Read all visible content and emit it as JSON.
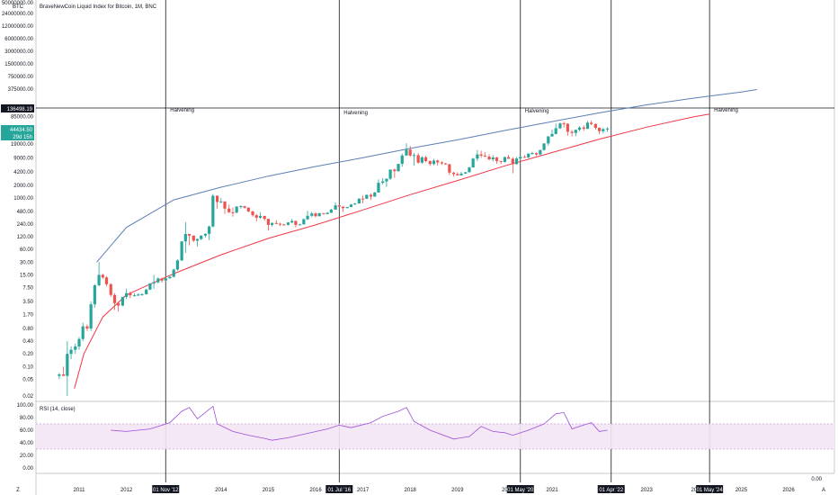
{
  "chart_data": {
    "type": "candlestick",
    "title": "BraveNewCoin Liquid Index for Bitcoin, 1M, BNC",
    "scale": "log",
    "price_axis_unit": "BTC",
    "price_ticks": [
      "50000000.00",
      "24000000.00",
      "12000000.00",
      "6000000.00",
      "3000000.00",
      "1500000.00",
      "750000.00",
      "375000.00",
      "85000.00",
      "19000.00",
      "9000.00",
      "4200.00",
      "2000.00",
      "1000.00",
      "480.00",
      "240.00",
      "120.00",
      "60.00",
      "30.00",
      "15.00",
      "7.50",
      "3.50",
      "1.70",
      "0.80",
      "0.40",
      "0.20",
      "0.10",
      "0.05",
      "0.02"
    ],
    "price_tick_values": [
      50000000,
      24000000,
      12000000,
      6000000,
      3000000,
      1500000,
      750000,
      375000,
      85000,
      19000,
      9000,
      4200,
      2000,
      1000,
      480,
      240,
      120,
      60,
      30,
      15,
      7.5,
      3.5,
      1.7,
      0.8,
      0.4,
      0.2,
      0.1,
      0.05,
      0.02
    ],
    "crosshair_price_label": "136498.19",
    "crosshair_price": 136498.19,
    "last_price_label": "44434.50",
    "last_price_countdown": "29d 15h",
    "x_ticks": [
      "2011",
      "2012",
      "2014",
      "2015",
      "2016",
      "2017",
      "2018",
      "2019",
      "20",
      "2021",
      "2023",
      "20",
      "2025",
      "2026"
    ],
    "x_tick_years": [
      2011,
      2012,
      2014,
      2015,
      2016,
      2017,
      2018,
      2019,
      2020,
      2021,
      2023,
      2024,
      2025,
      2026
    ],
    "halvings": [
      {
        "label": "Halvening",
        "date": "01 Nov '12",
        "t": 2012.83
      },
      {
        "label": "Halvening",
        "date": "01 Jul '16",
        "t": 2016.5
      },
      {
        "label": "Halvening",
        "date": "01 May '20",
        "t": 2020.33
      },
      {
        "label": "",
        "date": "01 Apr '22",
        "t": 2022.25
      },
      {
        "label": "Halvening",
        "date": "01 May '24",
        "t": 2024.33
      }
    ],
    "upper_curve": {
      "color": "#5b7fb5",
      "points": [
        [
          2011.37,
          30
        ],
        [
          2012,
          200
        ],
        [
          2013,
          900
        ],
        [
          2014,
          1800
        ],
        [
          2015,
          3300
        ],
        [
          2016,
          5600
        ],
        [
          2017,
          9000
        ],
        [
          2018,
          15000
        ],
        [
          2019,
          24000
        ],
        [
          2020,
          40000
        ],
        [
          2021,
          65000
        ],
        [
          2022,
          105000
        ],
        [
          2023,
          165000
        ],
        [
          2024,
          250000
        ],
        [
          2025,
          360000
        ],
        [
          2025.33,
          420000
        ]
      ]
    },
    "lower_curve": {
      "color": "#f23645",
      "points": [
        [
          2010.9,
          0.03
        ],
        [
          2011.1,
          0.2
        ],
        [
          2011.5,
          1.5
        ],
        [
          2012,
          5
        ],
        [
          2012.5,
          9
        ],
        [
          2013,
          16
        ],
        [
          2014,
          45
        ],
        [
          2015,
          110
        ],
        [
          2016,
          230
        ],
        [
          2017,
          520
        ],
        [
          2018,
          1200
        ],
        [
          2019,
          2600
        ],
        [
          2020,
          5800
        ],
        [
          2021,
          12000
        ],
        [
          2022,
          25000
        ],
        [
          2023,
          48000
        ],
        [
          2024,
          85000
        ],
        [
          2024.33,
          98000
        ]
      ]
    },
    "candles": [
      [
        2010.58,
        0.06,
        0.07,
        0.05,
        0.065
      ],
      [
        2010.67,
        0.065,
        0.1,
        0.06,
        0.06
      ],
      [
        2010.75,
        0.06,
        0.4,
        0.02,
        0.2
      ],
      [
        2010.83,
        0.2,
        0.3,
        0.15,
        0.25
      ],
      [
        2010.92,
        0.25,
        0.35,
        0.2,
        0.3
      ],
      [
        2011.0,
        0.3,
        0.5,
        0.25,
        0.45
      ],
      [
        2011.08,
        0.45,
        1.1,
        0.4,
        0.9
      ],
      [
        2011.17,
        0.9,
        1.0,
        0.7,
        0.8
      ],
      [
        2011.25,
        0.8,
        3.5,
        0.7,
        3.0
      ],
      [
        2011.33,
        3.0,
        9.0,
        2.5,
        8.5
      ],
      [
        2011.42,
        8.5,
        30,
        8,
        15
      ],
      [
        2011.5,
        15,
        16,
        12,
        13
      ],
      [
        2011.58,
        13,
        14,
        8,
        9
      ],
      [
        2011.67,
        9,
        9.5,
        4.5,
        5
      ],
      [
        2011.75,
        5,
        5.5,
        2.2,
        3.2
      ],
      [
        2011.83,
        3.2,
        3.5,
        2.0,
        2.8
      ],
      [
        2011.92,
        2.8,
        4.5,
        2.7,
        4.5
      ],
      [
        2012.0,
        4.5,
        7,
        4.0,
        5.5
      ],
      [
        2012.08,
        5.5,
        6,
        4.2,
        4.9
      ],
      [
        2012.17,
        4.9,
        5.5,
        4.6,
        4.9
      ],
      [
        2012.25,
        4.9,
        5.5,
        4.7,
        5.1
      ],
      [
        2012.33,
        5.1,
        5.5,
        4.8,
        5.2
      ],
      [
        2012.42,
        5.2,
        7,
        5.1,
        6.7
      ],
      [
        2012.5,
        6.7,
        9.5,
        6.5,
        9.4
      ],
      [
        2012.58,
        9.4,
        15,
        7,
        10
      ],
      [
        2012.67,
        10,
        13,
        9.5,
        12.3
      ],
      [
        2012.75,
        12.3,
        13,
        9.8,
        11
      ],
      [
        2012.83,
        11,
        13,
        10,
        12.5
      ],
      [
        2012.92,
        12.5,
        14,
        12,
        13.5
      ],
      [
        2013.0,
        13.5,
        21,
        13,
        20
      ],
      [
        2013.08,
        20,
        35,
        19,
        33
      ],
      [
        2013.17,
        33,
        95,
        32,
        93
      ],
      [
        2013.25,
        93,
        266,
        50,
        140
      ],
      [
        2013.33,
        140,
        140,
        75,
        128
      ],
      [
        2013.42,
        128,
        130,
        90,
        97
      ],
      [
        2013.5,
        97,
        110,
        70,
        106
      ],
      [
        2013.58,
        106,
        130,
        100,
        128
      ],
      [
        2013.67,
        128,
        145,
        115,
        141
      ],
      [
        2013.75,
        141,
        220,
        100,
        211
      ],
      [
        2013.83,
        211,
        1240,
        200,
        1130
      ],
      [
        2013.92,
        1130,
        1160,
        560,
        805
      ],
      [
        2014.0,
        805,
        1000,
        750,
        830
      ],
      [
        2014.08,
        830,
        800,
        420,
        560
      ],
      [
        2014.17,
        560,
        700,
        440,
        460
      ],
      [
        2014.25,
        460,
        600,
        360,
        450
      ],
      [
        2014.33,
        450,
        600,
        430,
        630
      ],
      [
        2014.42,
        630,
        680,
        560,
        640
      ],
      [
        2014.5,
        640,
        650,
        560,
        590
      ],
      [
        2014.58,
        590,
        600,
        460,
        480
      ],
      [
        2014.67,
        480,
        500,
        360,
        390
      ],
      [
        2014.75,
        390,
        420,
        280,
        340
      ],
      [
        2014.83,
        340,
        460,
        320,
        375
      ],
      [
        2014.92,
        375,
        380,
        290,
        320
      ],
      [
        2015.0,
        320,
        320,
        170,
        230
      ],
      [
        2015.08,
        230,
        265,
        210,
        255
      ],
      [
        2015.17,
        255,
        300,
        240,
        245
      ],
      [
        2015.25,
        245,
        260,
        215,
        235
      ],
      [
        2015.33,
        235,
        245,
        225,
        230
      ],
      [
        2015.42,
        230,
        265,
        225,
        263
      ],
      [
        2015.5,
        263,
        320,
        250,
        285
      ],
      [
        2015.58,
        285,
        290,
        200,
        230
      ],
      [
        2015.67,
        230,
        245,
        225,
        236
      ],
      [
        2015.75,
        236,
        330,
        235,
        313
      ],
      [
        2015.83,
        313,
        500,
        300,
        378
      ],
      [
        2015.92,
        378,
        470,
        350,
        430
      ],
      [
        2016.0,
        430,
        460,
        350,
        370
      ],
      [
        2016.08,
        370,
        440,
        365,
        437
      ],
      [
        2016.17,
        437,
        440,
        400,
        416
      ],
      [
        2016.25,
        416,
        465,
        410,
        448
      ],
      [
        2016.33,
        448,
        550,
        440,
        530
      ],
      [
        2016.42,
        530,
        780,
        525,
        670
      ],
      [
        2016.5,
        670,
        700,
        610,
        625
      ],
      [
        2016.58,
        625,
        630,
        470,
        575
      ],
      [
        2016.67,
        575,
        610,
        570,
        610
      ],
      [
        2016.75,
        610,
        720,
        600,
        700
      ],
      [
        2016.83,
        700,
        760,
        690,
        740
      ],
      [
        2016.92,
        740,
        980,
        735,
        965
      ],
      [
        2017.0,
        965,
        1150,
        750,
        960
      ],
      [
        2017.08,
        960,
        1200,
        950,
        1190
      ],
      [
        2017.17,
        1190,
        1290,
        900,
        1080
      ],
      [
        2017.25,
        1080,
        1400,
        1070,
        1350
      ],
      [
        2017.33,
        1350,
        2750,
        1340,
        2300
      ],
      [
        2017.42,
        2300,
        2980,
        2100,
        2480
      ],
      [
        2017.5,
        2480,
        2900,
        1840,
        2870
      ],
      [
        2017.58,
        2870,
        4750,
        2690,
        4730
      ],
      [
        2017.67,
        4730,
        4980,
        3000,
        4340
      ],
      [
        2017.75,
        4340,
        6450,
        4140,
        6450
      ],
      [
        2017.83,
        6450,
        11300,
        5500,
        10200
      ],
      [
        2017.92,
        10200,
        19800,
        10000,
        14100
      ],
      [
        2018.0,
        14100,
        17300,
        9500,
        10200
      ],
      [
        2018.08,
        10200,
        11800,
        5900,
        10400
      ],
      [
        2018.17,
        10400,
        11600,
        6500,
        6900
      ],
      [
        2018.25,
        6900,
        9800,
        6500,
        9250
      ],
      [
        2018.33,
        9250,
        10000,
        7000,
        7500
      ],
      [
        2018.42,
        7500,
        7800,
        5800,
        6400
      ],
      [
        2018.5,
        6400,
        8500,
        6000,
        7730
      ],
      [
        2018.58,
        7730,
        8200,
        5900,
        7000
      ],
      [
        2018.67,
        7000,
        7400,
        6100,
        6600
      ],
      [
        2018.75,
        6600,
        6800,
        6200,
        6300
      ],
      [
        2018.83,
        6300,
        6500,
        3500,
        4000
      ],
      [
        2018.92,
        4000,
        4200,
        3200,
        3700
      ],
      [
        2019.0,
        3700,
        4100,
        3400,
        3450
      ],
      [
        2019.08,
        3450,
        4200,
        3400,
        3800
      ],
      [
        2019.17,
        3800,
        4100,
        3700,
        4100
      ],
      [
        2019.25,
        4100,
        5600,
        4000,
        5300
      ],
      [
        2019.33,
        5300,
        9000,
        5300,
        8600
      ],
      [
        2019.42,
        8600,
        13800,
        7500,
        10800
      ],
      [
        2019.5,
        10800,
        13200,
        9000,
        10100
      ],
      [
        2019.58,
        10100,
        12300,
        9400,
        9600
      ],
      [
        2019.67,
        9600,
        10900,
        7800,
        8300
      ],
      [
        2019.75,
        8300,
        10400,
        7300,
        9150
      ],
      [
        2019.83,
        9150,
        9500,
        6500,
        7550
      ],
      [
        2019.92,
        7550,
        7700,
        6400,
        7200
      ],
      [
        2020.0,
        7200,
        9600,
        6900,
        9350
      ],
      [
        2020.08,
        9350,
        10500,
        8500,
        8550
      ],
      [
        2020.17,
        8550,
        9200,
        3850,
        6400
      ],
      [
        2020.25,
        6400,
        9500,
        6200,
        8650
      ],
      [
        2020.33,
        8650,
        10100,
        8100,
        9450
      ],
      [
        2020.42,
        9450,
        10400,
        8900,
        9150
      ],
      [
        2020.5,
        9150,
        11400,
        8900,
        11350
      ],
      [
        2020.58,
        11350,
        12500,
        10600,
        11650
      ],
      [
        2020.67,
        11650,
        12100,
        9900,
        10800
      ],
      [
        2020.75,
        10800,
        13900,
        10400,
        13800
      ],
      [
        2020.83,
        13800,
        19800,
        13200,
        19700
      ],
      [
        2020.92,
        19700,
        29300,
        17600,
        29000
      ],
      [
        2021.0,
        29000,
        41900,
        28200,
        33100
      ],
      [
        2021.08,
        33100,
        58300,
        32300,
        45200
      ],
      [
        2021.17,
        45200,
        61700,
        43000,
        58900
      ],
      [
        2021.25,
        58900,
        64800,
        47000,
        57800
      ],
      [
        2021.33,
        57800,
        59500,
        30000,
        37300
      ],
      [
        2021.42,
        37300,
        41300,
        28800,
        35000
      ],
      [
        2021.5,
        35000,
        42200,
        29300,
        41500
      ],
      [
        2021.58,
        41500,
        50400,
        37800,
        47100
      ],
      [
        2021.67,
        47100,
        52900,
        39600,
        43800
      ],
      [
        2021.75,
        43800,
        67000,
        43300,
        61300
      ],
      [
        2021.83,
        61300,
        69000,
        53500,
        57000
      ],
      [
        2021.92,
        57000,
        59100,
        42000,
        46300
      ],
      [
        2022.0,
        46300,
        47900,
        33000,
        38500
      ],
      [
        2022.08,
        38500,
        45800,
        34300,
        43200
      ],
      [
        2022.17,
        43200,
        48200,
        37200,
        44434.5
      ]
    ],
    "rsi": {
      "label": "RSI (14, close)",
      "ticks": [
        "100.00",
        "80.00",
        "60.00",
        "40.00",
        "20.00",
        "0.00"
      ],
      "tick_values": [
        100,
        80,
        60,
        40,
        20,
        0
      ],
      "bands": [
        70,
        30
      ],
      "series": [
        [
          2011.67,
          60
        ],
        [
          2012.0,
          58
        ],
        [
          2012.5,
          62
        ],
        [
          2012.92,
          72
        ],
        [
          2013.17,
          90
        ],
        [
          2013.33,
          96
        ],
        [
          2013.5,
          78
        ],
        [
          2013.83,
          98
        ],
        [
          2013.92,
          70
        ],
        [
          2014.25,
          58
        ],
        [
          2014.58,
          52
        ],
        [
          2014.92,
          47
        ],
        [
          2015.08,
          44
        ],
        [
          2015.42,
          48
        ],
        [
          2015.83,
          55
        ],
        [
          2016.25,
          62
        ],
        [
          2016.5,
          68
        ],
        [
          2016.75,
          64
        ],
        [
          2017.17,
          72
        ],
        [
          2017.42,
          82
        ],
        [
          2017.75,
          90
        ],
        [
          2017.92,
          96
        ],
        [
          2018.08,
          74
        ],
        [
          2018.42,
          60
        ],
        [
          2018.92,
          46
        ],
        [
          2019.25,
          50
        ],
        [
          2019.5,
          66
        ],
        [
          2019.75,
          58
        ],
        [
          2020.0,
          56
        ],
        [
          2020.17,
          52
        ],
        [
          2020.5,
          60
        ],
        [
          2020.83,
          70
        ],
        [
          2021.08,
          86
        ],
        [
          2021.25,
          88
        ],
        [
          2021.42,
          62
        ],
        [
          2021.58,
          66
        ],
        [
          2021.83,
          72
        ],
        [
          2022.0,
          58
        ],
        [
          2022.17,
          60
        ]
      ]
    },
    "extra_scale_label": "0.00",
    "corner_labels": {
      "bottom_left": "Z",
      "bottom_right": "A"
    }
  }
}
